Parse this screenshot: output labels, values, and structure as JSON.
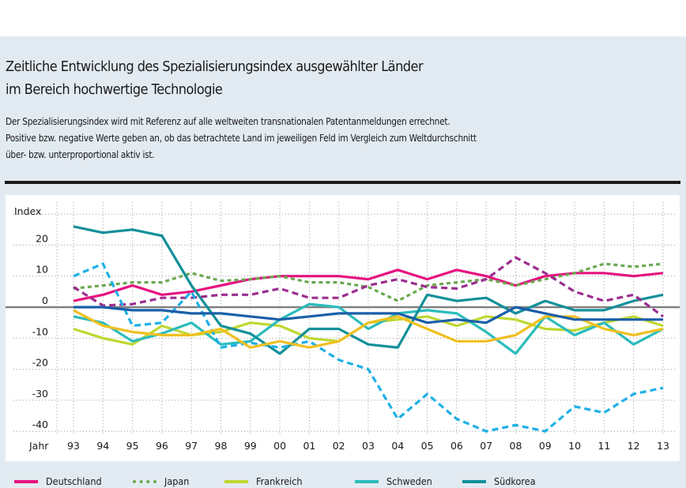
{
  "header": {
    "title_lines": [
      "Zeitliche Entwicklung des Spezialisierungsindex ausgewählter Länder",
      "im Bereich hochwertige Technologie"
    ],
    "description_lines": [
      "Der Spezialisierungsindex wird mit Referenz auf alle weltweiten transnationalen Patentanmeldungen errechnet.",
      "Positive bzw. negative Werte geben an, ob das betrachtete Land im jeweiligen Feld im Vergleich zum Weltdurchschnitt",
      "über- bzw. unterproportional aktiv ist."
    ]
  },
  "chart_data": {
    "type": "line",
    "title": "Zeitliche Entwicklung des Spezialisierungsindex ausgewählter Länder im Bereich hochwertige Technologie",
    "xlabel": "Jahr",
    "ylabel": "Index",
    "categories": [
      "93",
      "94",
      "95",
      "96",
      "97",
      "98",
      "99",
      "00",
      "01",
      "02",
      "03",
      "04",
      "05",
      "06",
      "07",
      "08",
      "09",
      "10",
      "11",
      "12",
      "13"
    ],
    "yticks": [
      20,
      10,
      0,
      -10,
      -20,
      -30,
      -40
    ],
    "ylim": [
      -40,
      30
    ],
    "grid": true,
    "legend_position": "bottom",
    "series": [
      {
        "name": "Deutschland",
        "color": "#e6127f",
        "style": "solid",
        "values": [
          2,
          4,
          7,
          4,
          5,
          7,
          9,
          10,
          10,
          10,
          9,
          12,
          9,
          12,
          10,
          7,
          10,
          11,
          11,
          10,
          11
        ]
      },
      {
        "name": "Japan",
        "color": "#6aa84f",
        "style": "dotted",
        "values": [
          6,
          7,
          8,
          8,
          11,
          8.5,
          9,
          10,
          8,
          8,
          6.5,
          2,
          7,
          8,
          9,
          7,
          9,
          11,
          14,
          13,
          14
        ]
      },
      {
        "name": "Frankreich",
        "color": "#bfd731",
        "style": "solid",
        "values": [
          -7,
          -10,
          -12,
          -6,
          -9,
          -8,
          -5,
          -6,
          -10,
          -11,
          -5,
          -4,
          -3,
          -6,
          -3,
          -4,
          -7,
          -7.5,
          -5,
          -3,
          -6
        ]
      },
      {
        "name": "Schweden",
        "color": "#2bbcbc",
        "style": "solid",
        "values": [
          -3,
          -5,
          -11,
          -8.5,
          -5,
          -12,
          -11,
          -4,
          1,
          0,
          -7,
          -2,
          -1,
          -2,
          -8,
          -15,
          -3,
          -9,
          -5,
          -12,
          -7
        ]
      },
      {
        "name": "Südkorea",
        "color": "#13909a",
        "style": "solid",
        "values": [
          26,
          24,
          25,
          23,
          7,
          -6,
          -8.5,
          -15,
          -7,
          -7,
          -12,
          -13,
          4,
          2,
          3,
          -2,
          2,
          -1,
          -1,
          2,
          4
        ]
      },
      {
        "name": "",
        "color": "#9b2d8f",
        "style": "dashed",
        "values": [
          6.5,
          0.5,
          1,
          3,
          3,
          4,
          4,
          6,
          3,
          3,
          7,
          9,
          6.5,
          6,
          9,
          16,
          11,
          5,
          2,
          4,
          -3
        ]
      },
      {
        "name": "",
        "color": "#1fb0e6",
        "style": "dashed",
        "values": [
          10,
          14,
          -6,
          -5,
          5,
          -13,
          -11.5,
          -13,
          -11,
          -17,
          -20,
          -36,
          -28,
          -36,
          -40,
          -38,
          -40,
          -32,
          -34,
          -28,
          -26
        ]
      },
      {
        "name": "",
        "color": "#f0c020",
        "style": "solid",
        "values": [
          -1,
          -6,
          -8,
          -9,
          -9,
          -7,
          -13,
          -11,
          -13,
          -11,
          -5,
          -3,
          -7,
          -11,
          -11,
          -9,
          -3,
          -3,
          -7,
          -9,
          -7
        ]
      },
      {
        "name": "",
        "color": "#1a5fa8",
        "style": "solid",
        "values": [
          0,
          0,
          -1,
          -1,
          -2,
          -2,
          -3,
          -4,
          -3,
          -2,
          -2,
          -2,
          -5,
          -4,
          -5,
          0,
          -2,
          -4,
          -4,
          -4,
          -4
        ]
      }
    ]
  },
  "legend": [
    {
      "label": "Deutschland",
      "color": "#e6127f",
      "style": "solid"
    },
    {
      "label": "Japan",
      "color": "#6aa84f",
      "style": "dotted"
    },
    {
      "label": "Frankreich",
      "color": "#bfd731",
      "style": "solid"
    },
    {
      "label": "Schweden",
      "color": "#2bbcbc",
      "style": "solid"
    },
    {
      "label": "Südkorea",
      "color": "#13909a",
      "style": "solid"
    }
  ]
}
